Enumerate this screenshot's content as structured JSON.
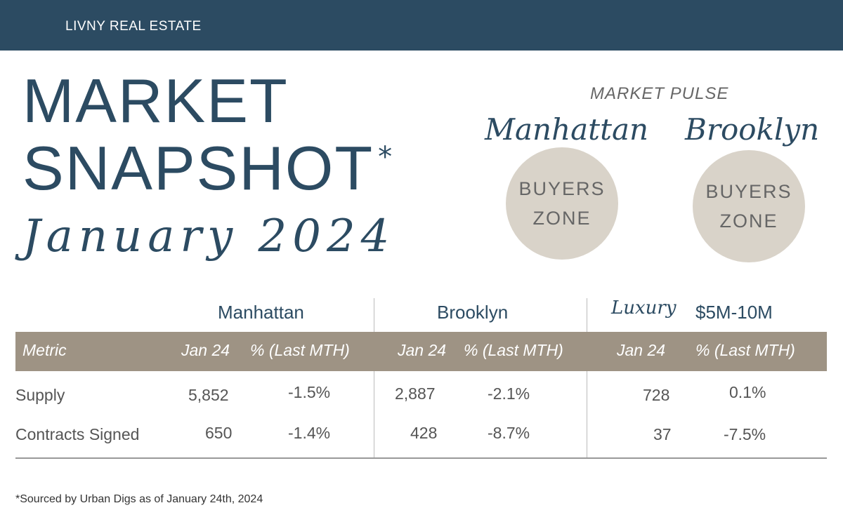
{
  "brand": "LIVNY REAL ESTATE",
  "title_line1": "MARKET",
  "title_line2": "SNAPSHOT",
  "asterisk": "*",
  "subtitle": "January 2024",
  "pulse": {
    "label": "MARKET PULSE",
    "areas": [
      {
        "name": "Manhattan",
        "status_line1": "BUYERS",
        "status_line2": "ZONE"
      },
      {
        "name": "Brooklyn",
        "status_line1": "BUYERS",
        "status_line2": "ZONE"
      }
    ]
  },
  "table": {
    "groups": [
      "Manhattan",
      "Brooklyn"
    ],
    "luxury_script": "Luxury",
    "luxury_range": "$5M-10M",
    "headers": {
      "metric": "Metric",
      "jan": "Jan 24",
      "pct": "% (Last MTH)"
    },
    "rows": [
      {
        "metric": "Supply",
        "manhattan": [
          "5,852",
          "-1.5%"
        ],
        "brooklyn": [
          "2,887",
          "-2.1%"
        ],
        "luxury": [
          "728",
          "0.1%"
        ]
      },
      {
        "metric": "Contracts Signed",
        "manhattan": [
          "650",
          "-1.4%"
        ],
        "brooklyn": [
          "428",
          "-8.7%"
        ],
        "luxury": [
          "37",
          "-7.5%"
        ]
      }
    ]
  },
  "footnote": "*Sourced by Urban Digs as of January 24th, 2024",
  "colors": {
    "header": "#2c4b62",
    "band": "#9e9384",
    "circle": "#d9d3c9"
  }
}
